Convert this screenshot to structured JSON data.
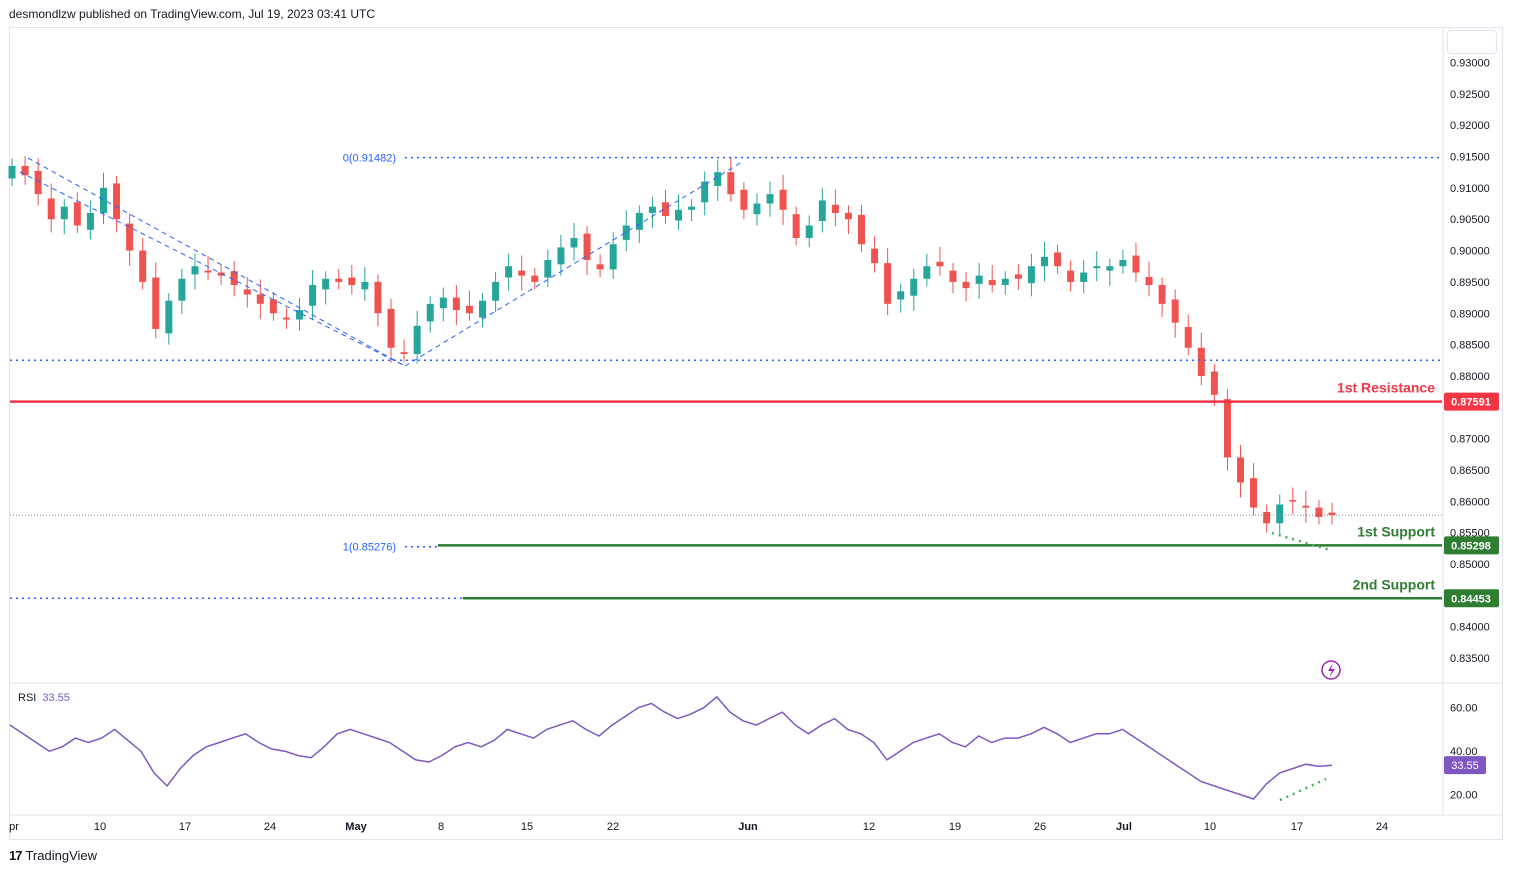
{
  "header": {
    "publisher": "desmondlzw published on TradingView.com, Jul 19, 2023 03:41 UTC"
  },
  "footer": {
    "logo_glyph": "17",
    "brand": "TradingView"
  },
  "colors": {
    "up": "#26a69a",
    "down": "#ef5350",
    "resistance": "#f23645",
    "support": "#2e7d32",
    "fib": "#2962ff",
    "rsi": "#7e57c2",
    "grid": "#f0f3fa",
    "axis_text": "#131722",
    "support_dots": "#4caf50"
  },
  "chart_data": {
    "type": "candlestick",
    "instrument_note": "",
    "price_axis": {
      "ticks": [
        "0.93000",
        "0.92500",
        "0.92000",
        "0.91500",
        "0.91000",
        "0.90500",
        "0.90000",
        "0.89500",
        "0.89000",
        "0.88500",
        "0.88000",
        "0.87000",
        "0.86500",
        "0.86000",
        "0.85500",
        "0.85000",
        "0.84000",
        "0.83500"
      ],
      "range": [
        0.8315,
        0.9355
      ]
    },
    "time_axis": {
      "ticks": [
        "pr",
        "10",
        "17",
        "24",
        "May",
        "8",
        "15",
        "22",
        "Jun",
        "12",
        "19",
        "26",
        "Jul",
        "10",
        "17",
        "24"
      ],
      "bold_ticks": [
        "May",
        "Jun",
        "Jul"
      ]
    },
    "close_series": [
      0.9135,
      0.912,
      0.909,
      0.905,
      0.907,
      0.904,
      0.906,
      0.91,
      0.905,
      0.9,
      0.895,
      0.8875,
      0.892,
      0.8955,
      0.8975,
      0.8965,
      0.896,
      0.8945,
      0.893,
      0.8915,
      0.89,
      0.889,
      0.8905,
      0.8945,
      0.8955,
      0.895,
      0.8945,
      0.895,
      0.89,
      0.8845,
      0.8835,
      0.888,
      0.8915,
      0.8925,
      0.8905,
      0.89,
      0.892,
      0.895,
      0.8975,
      0.896,
      0.895,
      0.8985,
      0.9005,
      0.902,
      0.8985,
      0.897,
      0.901,
      0.904,
      0.906,
      0.907,
      0.9055,
      0.9065,
      0.907,
      0.911,
      0.9125,
      0.909,
      0.9065,
      0.9075,
      0.909,
      0.9065,
      0.902,
      0.904,
      0.908,
      0.906,
      0.905,
      0.901,
      0.898,
      0.8915,
      0.8935,
      0.8955,
      0.8975,
      0.8975,
      0.895,
      0.894,
      0.896,
      0.8945,
      0.8955,
      0.8955,
      0.8975,
      0.899,
      0.8975,
      0.895,
      0.8965,
      0.8975,
      0.8975,
      0.8985,
      0.8965,
      0.8945,
      0.8915,
      0.8885,
      0.8845,
      0.88,
      0.877,
      0.867,
      0.863,
      0.859,
      0.8565,
      0.8595,
      0.86,
      0.859,
      0.8575,
      0.8578
    ],
    "annotations": {
      "fib_top": {
        "label": "0(0.91482)",
        "price": 0.91482
      },
      "fib_bottom": {
        "label": "1(0.85276)",
        "price": 0.85276
      },
      "dotted_level_price": 0.8825,
      "current_price_price": 0.8578,
      "resistance_1": {
        "label": "1st Resistance",
        "price": 0.87591,
        "badge": "0.87591"
      },
      "support_1": {
        "label": "1st Support",
        "price": 0.85298,
        "badge": "0.85298"
      },
      "support_2": {
        "label": "2nd Support",
        "price": 0.84453,
        "badge": "0.84453"
      }
    },
    "rsi": {
      "title": "RSI",
      "current": "33.55",
      "ticks": [
        "60.00",
        "40.00",
        "20.00"
      ],
      "range": [
        12,
        70
      ],
      "values": [
        52,
        48,
        44,
        40,
        42,
        46,
        44,
        46,
        50,
        45,
        40,
        30,
        24,
        32,
        38,
        42,
        44,
        46,
        48,
        44,
        41,
        40,
        38,
        37,
        42,
        48,
        50,
        48,
        46,
        44,
        40,
        36,
        35,
        38,
        42,
        44,
        42,
        45,
        50,
        48,
        46,
        50,
        52,
        54,
        50,
        47,
        52,
        56,
        60,
        62,
        58,
        55,
        57,
        60,
        65,
        58,
        54,
        52,
        55,
        58,
        52,
        48,
        52,
        55,
        50,
        48,
        44,
        36,
        40,
        44,
        46,
        48,
        44,
        42,
        47,
        44,
        46,
        46,
        48,
        51,
        48,
        44,
        46,
        48,
        48,
        50,
        46,
        42,
        38,
        34,
        30,
        26,
        24,
        22,
        20,
        18,
        25,
        30,
        32,
        34,
        33,
        33.55
      ]
    }
  }
}
